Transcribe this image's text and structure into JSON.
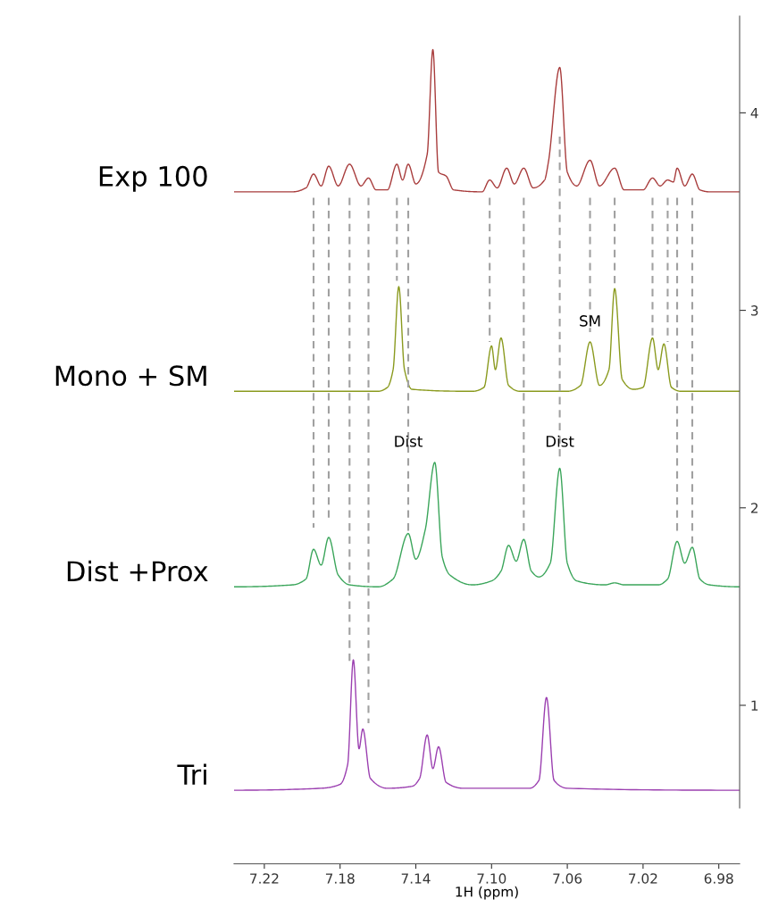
{
  "chart_data": {
    "type": "line",
    "xlabel": "1H (ppm)",
    "xlim": [
      7.236,
      6.969
    ],
    "ylim": [
      0.48,
      4.49
    ],
    "xticks": [
      {
        "value": 7.22,
        "label": "7.22"
      },
      {
        "value": 7.18,
        "label": "7.18"
      },
      {
        "value": 7.14,
        "label": "7.14"
      },
      {
        "value": 7.1,
        "label": "7.10"
      },
      {
        "value": 7.06,
        "label": "7.06"
      },
      {
        "value": 7.02,
        "label": "7.02"
      },
      {
        "value": 6.98,
        "label": "6.98"
      }
    ],
    "yticks": [
      1,
      2,
      3,
      4
    ],
    "grid": false,
    "marker": "none",
    "line_style": "solid",
    "annotations": [
      {
        "text": "SM",
        "x": 7.048,
        "y": 2.94
      },
      {
        "text": "Dist",
        "x": 7.144,
        "y": 2.33
      },
      {
        "text": "Dist",
        "x": 7.064,
        "y": 2.33
      }
    ],
    "series": [
      {
        "name": "Exp 100",
        "color": "#a83c3c",
        "x": [
          7.236,
          7.205,
          7.198,
          7.194,
          7.19,
          7.186,
          7.181,
          7.175,
          7.169,
          7.165,
          7.161,
          7.155,
          7.15,
          7.147,
          7.144,
          7.14,
          7.134,
          7.131,
          7.128,
          7.124,
          7.12,
          7.105,
          7.101,
          7.097,
          7.092,
          7.088,
          7.083,
          7.078,
          7.072,
          7.07,
          7.064,
          7.06,
          7.055,
          7.048,
          7.043,
          7.035,
          7.03,
          7.02,
          7.015,
          7.011,
          7.007,
          7.004,
          7.002,
          6.998,
          6.994,
          6.99,
          6.985,
          6.969
        ],
        "values": [
          3.6,
          3.6,
          3.62,
          3.69,
          3.63,
          3.73,
          3.63,
          3.74,
          3.63,
          3.67,
          3.61,
          3.61,
          3.74,
          3.66,
          3.74,
          3.64,
          3.79,
          4.32,
          3.7,
          3.68,
          3.61,
          3.6,
          3.66,
          3.62,
          3.72,
          3.64,
          3.72,
          3.62,
          3.66,
          3.75,
          4.23,
          3.7,
          3.63,
          3.76,
          3.63,
          3.72,
          3.61,
          3.61,
          3.67,
          3.63,
          3.66,
          3.65,
          3.72,
          3.63,
          3.69,
          3.61,
          3.6,
          3.6
        ]
      },
      {
        "name": "Mono + SM",
        "color": "#8a9a1e",
        "x": [
          7.236,
          7.16,
          7.155,
          7.152,
          7.149,
          7.146,
          7.142,
          7.11,
          7.104,
          7.1,
          7.098,
          7.095,
          7.091,
          7.085,
          7.06,
          7.053,
          7.048,
          7.043,
          7.038,
          7.035,
          7.031,
          7.025,
          7.02,
          7.015,
          7.012,
          7.009,
          7.005,
          7.0,
          6.969
        ],
        "values": [
          2.59,
          2.59,
          2.61,
          2.7,
          3.12,
          2.7,
          2.6,
          2.59,
          2.61,
          2.82,
          2.7,
          2.86,
          2.62,
          2.59,
          2.59,
          2.62,
          2.84,
          2.62,
          2.7,
          3.11,
          2.65,
          2.6,
          2.61,
          2.86,
          2.7,
          2.83,
          2.61,
          2.59,
          2.59
        ]
      },
      {
        "name": "Dist +Prox",
        "color": "#3aa55a",
        "x": [
          7.236,
          7.205,
          7.198,
          7.194,
          7.19,
          7.186,
          7.181,
          7.175,
          7.16,
          7.152,
          7.144,
          7.14,
          7.135,
          7.13,
          7.126,
          7.122,
          7.11,
          7.1,
          7.095,
          7.091,
          7.087,
          7.083,
          7.079,
          7.075,
          7.069,
          7.064,
          7.06,
          7.055,
          7.04,
          7.035,
          7.03,
          7.012,
          7.007,
          7.002,
          6.998,
          6.994,
          6.99,
          6.985,
          6.969
        ],
        "values": [
          1.6,
          1.61,
          1.64,
          1.79,
          1.71,
          1.85,
          1.66,
          1.61,
          1.6,
          1.64,
          1.87,
          1.74,
          1.89,
          2.23,
          1.75,
          1.66,
          1.61,
          1.63,
          1.68,
          1.81,
          1.73,
          1.84,
          1.68,
          1.65,
          1.72,
          2.2,
          1.72,
          1.63,
          1.61,
          1.62,
          1.61,
          1.61,
          1.64,
          1.83,
          1.72,
          1.8,
          1.64,
          1.61,
          1.6
        ]
      },
      {
        "name": "Tri",
        "color": "#9b3fb0",
        "x": [
          7.236,
          7.19,
          7.18,
          7.176,
          7.173,
          7.17,
          7.168,
          7.164,
          7.155,
          7.142,
          7.138,
          7.134,
          7.131,
          7.128,
          7.124,
          7.115,
          7.08,
          7.075,
          7.071,
          7.067,
          7.06,
          6.969
        ],
        "values": [
          0.57,
          0.58,
          0.6,
          0.7,
          1.23,
          0.78,
          0.88,
          0.63,
          0.58,
          0.59,
          0.63,
          0.85,
          0.68,
          0.79,
          0.61,
          0.58,
          0.58,
          0.62,
          1.04,
          0.62,
          0.58,
          0.57
        ]
      },
      {
        "color": "#a0a0a0",
        "line_style": "dashed",
        "x": [
          7.194,
          7.194
        ],
        "values": [
          3.57,
          1.9
        ]
      },
      {
        "color": "#a0a0a0",
        "line_style": "dashed",
        "x": [
          7.186,
          7.186
        ],
        "values": [
          3.57,
          1.93
        ]
      },
      {
        "color": "#a0a0a0",
        "line_style": "dashed",
        "x": [
          7.175,
          7.175
        ],
        "values": [
          3.57,
          1.22
        ]
      },
      {
        "color": "#a0a0a0",
        "line_style": "dashed",
        "x": [
          7.165,
          7.165
        ],
        "values": [
          3.57,
          0.91
        ]
      },
      {
        "color": "#a0a0a0",
        "line_style": "dashed",
        "x": [
          7.15,
          7.15
        ],
        "values": [
          3.57,
          3.15
        ]
      },
      {
        "color": "#a0a0a0",
        "line_style": "dashed",
        "x": [
          7.144,
          7.144
        ],
        "values": [
          3.57,
          1.88
        ]
      },
      {
        "color": "#a0a0a0",
        "line_style": "dashed",
        "x": [
          7.101,
          7.101
        ],
        "values": [
          3.57,
          2.84
        ]
      },
      {
        "color": "#a0a0a0",
        "line_style": "dashed",
        "x": [
          7.083,
          7.083
        ],
        "values": [
          3.57,
          1.86
        ]
      },
      {
        "color": "#a0a0a0",
        "line_style": "dashed",
        "x": [
          7.064,
          7.064
        ],
        "values": [
          3.88,
          2.26
        ]
      },
      {
        "color": "#a0a0a0",
        "line_style": "dashed",
        "x": [
          7.048,
          7.048
        ],
        "values": [
          3.57,
          2.89
        ]
      },
      {
        "color": "#a0a0a0",
        "line_style": "dashed",
        "x": [
          7.035,
          7.035
        ],
        "values": [
          3.57,
          3.12
        ]
      },
      {
        "color": "#a0a0a0",
        "line_style": "dashed",
        "x": [
          7.015,
          7.015
        ],
        "values": [
          3.57,
          2.87
        ]
      },
      {
        "color": "#a0a0a0",
        "line_style": "dashed",
        "x": [
          7.007,
          7.007
        ],
        "values": [
          3.57,
          2.84
        ]
      },
      {
        "color": "#a0a0a0",
        "line_style": "dashed",
        "x": [
          7.002,
          7.002
        ],
        "values": [
          3.57,
          1.86
        ]
      },
      {
        "color": "#a0a0a0",
        "line_style": "dashed",
        "x": [
          6.994,
          6.994
        ],
        "values": [
          3.57,
          1.82
        ]
      }
    ]
  }
}
